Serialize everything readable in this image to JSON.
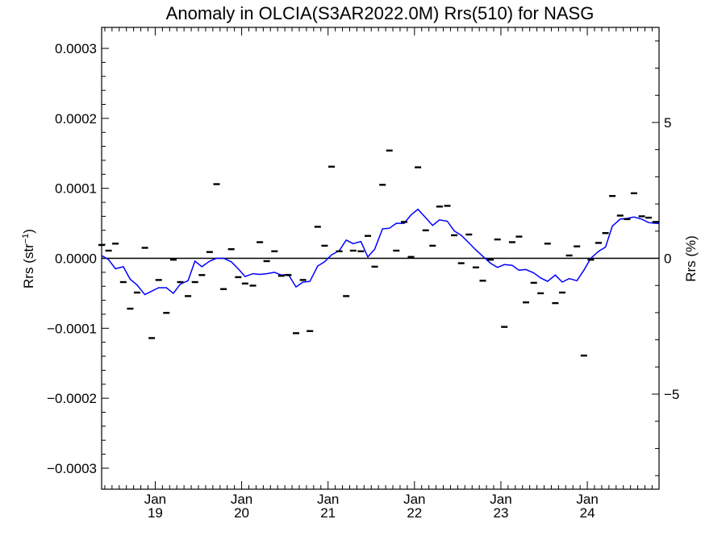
{
  "chart_data": {
    "type": "scatter",
    "title": "Anomaly in OLCIA(S3AR2022.0M) Rrs(510) for NASG",
    "ylabel_left": {
      "base": "Rrs (str",
      "sup": "−1",
      "close": ")"
    },
    "ylabel_right": "Rrs (%)",
    "xlim": [
      2018.38,
      2024.83
    ],
    "ylim_left": [
      -0.00033,
      0.00033
    ],
    "ylim_right": [
      -8.5,
      8.5
    ],
    "left_ticks": [
      {
        "value": 0.0003,
        "label": "0.0003"
      },
      {
        "value": 0.0002,
        "label": "0.0002"
      },
      {
        "value": 0.0001,
        "label": "0.0001"
      },
      {
        "value": 0.0,
        "label": "0.0000"
      },
      {
        "value": -0.0001,
        "label": "−0.0001"
      },
      {
        "value": -0.0002,
        "label": "−0.0002"
      },
      {
        "value": -0.0003,
        "label": "−0.0003"
      }
    ],
    "right_ticks": [
      {
        "value": 5,
        "label": "5"
      },
      {
        "value": 0,
        "label": "0"
      },
      {
        "value": -5,
        "label": "−5"
      }
    ],
    "x_ticks": [
      {
        "value": 2019,
        "month": "Jan",
        "year": "19"
      },
      {
        "value": 2020,
        "month": "Jan",
        "year": "20"
      },
      {
        "value": 2021,
        "month": "Jan",
        "year": "21"
      },
      {
        "value": 2022,
        "month": "Jan",
        "year": "22"
      },
      {
        "value": 2023,
        "month": "Jan",
        "year": "23"
      },
      {
        "value": 2024,
        "month": "Jan",
        "year": "24"
      }
    ],
    "zero_line": 0,
    "scatter_color": "#000000",
    "line_color": "#0000ff",
    "points": [
      [
        2018.38,
        1.9e-05
      ],
      [
        2018.46,
        1.1e-05
      ],
      [
        2018.54,
        2.1e-05
      ],
      [
        2018.63,
        -3.4e-05
      ],
      [
        2018.71,
        -7.2e-05
      ],
      [
        2018.79,
        -4.9e-05
      ],
      [
        2018.88,
        1.5e-05
      ],
      [
        2018.96,
        -0.000114
      ],
      [
        2019.04,
        -3.1e-05
      ],
      [
        2019.13,
        -7.8e-05
      ],
      [
        2019.21,
        -2e-06
      ],
      [
        2019.29,
        -3.4e-05
      ],
      [
        2019.38,
        -5.4e-05
      ],
      [
        2019.46,
        -3.4e-05
      ],
      [
        2019.54,
        -2.4e-05
      ],
      [
        2019.63,
        9e-06
      ],
      [
        2019.71,
        0.000106
      ],
      [
        2019.79,
        -4.4e-05
      ],
      [
        2019.88,
        1.3e-05
      ],
      [
        2019.96,
        -2.7e-05
      ],
      [
        2020.04,
        -3.6e-05
      ],
      [
        2020.13,
        -3.9e-05
      ],
      [
        2020.21,
        2.3e-05
      ],
      [
        2020.29,
        -4e-06
      ],
      [
        2020.38,
        1e-05
      ],
      [
        2020.46,
        -2.5e-05
      ],
      [
        2020.54,
        -2.4e-05
      ],
      [
        2020.63,
        -0.000107
      ],
      [
        2020.71,
        -3.1e-05
      ],
      [
        2020.79,
        -0.000104
      ],
      [
        2020.88,
        4.5e-05
      ],
      [
        2020.96,
        1.8e-05
      ],
      [
        2021.04,
        0.000131
      ],
      [
        2021.13,
        1e-05
      ],
      [
        2021.21,
        -5.4e-05
      ],
      [
        2021.29,
        1.1e-05
      ],
      [
        2021.38,
        1e-05
      ],
      [
        2021.46,
        3.2e-05
      ],
      [
        2021.54,
        -1.2e-05
      ],
      [
        2021.63,
        0.000105
      ],
      [
        2021.71,
        0.000154
      ],
      [
        2021.79,
        1.1e-05
      ],
      [
        2021.88,
        5.2e-05
      ],
      [
        2021.96,
        2e-06
      ],
      [
        2022.04,
        0.00013
      ],
      [
        2022.13,
        4e-05
      ],
      [
        2022.21,
        1.8e-05
      ],
      [
        2022.29,
        7.4e-05
      ],
      [
        2022.38,
        7.5e-05
      ],
      [
        2022.46,
        3.3e-05
      ],
      [
        2022.54,
        -7e-06
      ],
      [
        2022.63,
        3.4e-05
      ],
      [
        2022.71,
        -1.3e-05
      ],
      [
        2022.79,
        -3.2e-05
      ],
      [
        2022.88,
        -2e-06
      ],
      [
        2022.96,
        2.7e-05
      ],
      [
        2023.04,
        -9.8e-05
      ],
      [
        2023.13,
        2.3e-05
      ],
      [
        2023.21,
        3.1e-05
      ],
      [
        2023.29,
        -6.3e-05
      ],
      [
        2023.38,
        -3.5e-05
      ],
      [
        2023.46,
        -5e-05
      ],
      [
        2023.54,
        2.1e-05
      ],
      [
        2023.63,
        -6.4e-05
      ],
      [
        2023.71,
        -4.9e-05
      ],
      [
        2023.79,
        4e-06
      ],
      [
        2023.88,
        1.7e-05
      ],
      [
        2023.96,
        -0.000139
      ],
      [
        2024.04,
        -2e-06
      ],
      [
        2024.13,
        2.2e-05
      ],
      [
        2024.21,
        3.6e-05
      ],
      [
        2024.29,
        8.9e-05
      ],
      [
        2024.38,
        6.1e-05
      ],
      [
        2024.46,
        5.6e-05
      ],
      [
        2024.54,
        9.3e-05
      ],
      [
        2024.63,
        6e-05
      ],
      [
        2024.71,
        5.8e-05
      ],
      [
        2024.79,
        5.2e-05
      ]
    ],
    "trend_line": [
      [
        2018.38,
        4e-06
      ],
      [
        2018.46,
        -2e-06
      ],
      [
        2018.54,
        -1.5e-05
      ],
      [
        2018.63,
        -1.2e-05
      ],
      [
        2018.71,
        -3e-05
      ],
      [
        2018.79,
        -3.8e-05
      ],
      [
        2018.88,
        -5.2e-05
      ],
      [
        2018.96,
        -4.7e-05
      ],
      [
        2019.04,
        -4.2e-05
      ],
      [
        2019.13,
        -4.2e-05
      ],
      [
        2019.21,
        -5e-05
      ],
      [
        2019.29,
        -3.7e-05
      ],
      [
        2019.38,
        -3.2e-05
      ],
      [
        2019.46,
        -4e-06
      ],
      [
        2019.54,
        -1.2e-05
      ],
      [
        2019.63,
        -4e-06
      ],
      [
        2019.71,
        0.0
      ],
      [
        2019.79,
        0.0
      ],
      [
        2019.88,
        -5e-06
      ],
      [
        2019.96,
        -1.5e-05
      ],
      [
        2020.04,
        -2.6e-05
      ],
      [
        2020.13,
        -2.2e-05
      ],
      [
        2020.21,
        -2.3e-05
      ],
      [
        2020.29,
        -2.2e-05
      ],
      [
        2020.38,
        -2e-05
      ],
      [
        2020.46,
        -2.4e-05
      ],
      [
        2020.54,
        -2.3e-05
      ],
      [
        2020.63,
        -4.1e-05
      ],
      [
        2020.71,
        -3.4e-05
      ],
      [
        2020.79,
        -3.3e-05
      ],
      [
        2020.88,
        -1.1e-05
      ],
      [
        2020.96,
        -5e-06
      ],
      [
        2021.04,
        5e-06
      ],
      [
        2021.13,
        1.1e-05
      ],
      [
        2021.21,
        2.6e-05
      ],
      [
        2021.29,
        2.1e-05
      ],
      [
        2021.38,
        2.4e-05
      ],
      [
        2021.46,
        2e-06
      ],
      [
        2021.54,
        1.3e-05
      ],
      [
        2021.63,
        4.2e-05
      ],
      [
        2021.71,
        4.3e-05
      ],
      [
        2021.79,
        5e-05
      ],
      [
        2021.88,
        5e-05
      ],
      [
        2021.96,
        6.2e-05
      ],
      [
        2022.04,
        7e-05
      ],
      [
        2022.13,
        5.8e-05
      ],
      [
        2022.21,
        4.7e-05
      ],
      [
        2022.29,
        5.5e-05
      ],
      [
        2022.38,
        5.3e-05
      ],
      [
        2022.46,
        3.9e-05
      ],
      [
        2022.54,
        3.3e-05
      ],
      [
        2022.63,
        2.2e-05
      ],
      [
        2022.71,
        1.2e-05
      ],
      [
        2022.79,
        3e-06
      ],
      [
        2022.88,
        -7e-06
      ],
      [
        2022.96,
        -1.3e-05
      ],
      [
        2023.04,
        -9e-06
      ],
      [
        2023.13,
        -1e-05
      ],
      [
        2023.21,
        -1.7e-05
      ],
      [
        2023.29,
        -1.6e-05
      ],
      [
        2023.38,
        -2.1e-05
      ],
      [
        2023.46,
        -2.8e-05
      ],
      [
        2023.54,
        -3.3e-05
      ],
      [
        2023.63,
        -2.4e-05
      ],
      [
        2023.71,
        -3.4e-05
      ],
      [
        2023.79,
        -2.9e-05
      ],
      [
        2023.88,
        -3.2e-05
      ],
      [
        2023.96,
        -1.7e-05
      ],
      [
        2024.04,
        0.0
      ],
      [
        2024.13,
        1e-05
      ],
      [
        2024.21,
        1.6e-05
      ],
      [
        2024.29,
        4.6e-05
      ],
      [
        2024.38,
        5.6e-05
      ],
      [
        2024.46,
        5.7e-05
      ],
      [
        2024.54,
        5.9e-05
      ],
      [
        2024.63,
        5.6e-05
      ],
      [
        2024.71,
        5.1e-05
      ],
      [
        2024.79,
        5e-05
      ],
      [
        2024.83,
        5e-05
      ]
    ]
  }
}
